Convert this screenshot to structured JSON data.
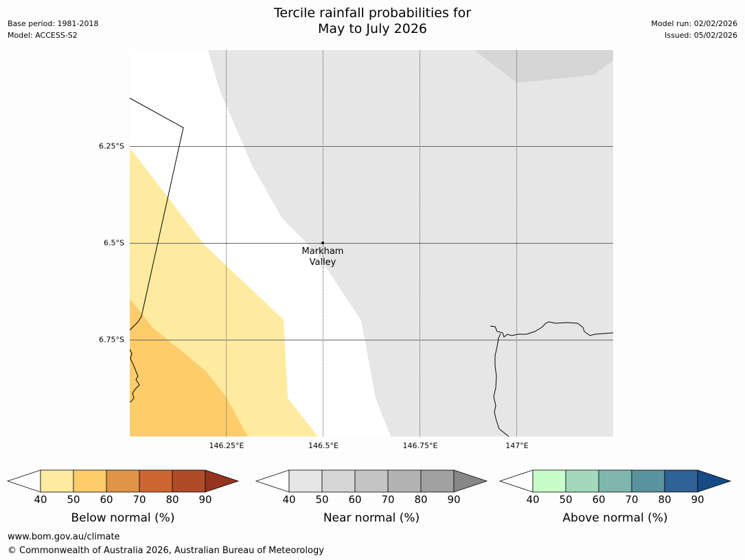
{
  "title": {
    "line1": "Tercile rainfall probabilities for",
    "line2": "May to July 2026"
  },
  "meta_left": {
    "base_period": "Base period: 1981-2018",
    "model": "Model: ACCESS-S2"
  },
  "meta_right": {
    "model_run": "Model run: 02/02/2026",
    "issued": "Issued: 05/02/2026"
  },
  "map": {
    "lat_labels": [
      "6.25°S",
      "6.5°S",
      "6.75°S"
    ],
    "lon_labels": [
      "146.25°E",
      "146.5°E",
      "146.75°E",
      "147°E"
    ],
    "place": {
      "line1": "Markham",
      "line2": "Valley"
    },
    "colors": {
      "below_40": "#ffeba0",
      "below_50": "#fecc6a",
      "near_40": "#e6e6e6",
      "near_50": "#d6d6d6"
    }
  },
  "colorbars": [
    {
      "title": "Below normal (%)",
      "ticks": [
        "40",
        "50",
        "60",
        "70",
        "80",
        "90"
      ],
      "colors": [
        "#ffeba0",
        "#fecc6a",
        "#e09447",
        "#cd6633",
        "#b04b28",
        "#95351f"
      ]
    },
    {
      "title": "Near normal (%)",
      "ticks": [
        "40",
        "50",
        "60",
        "70",
        "80",
        "90"
      ],
      "colors": [
        "#e6e6e6",
        "#d6d6d6",
        "#c4c4c4",
        "#b3b3b3",
        "#a1a1a1",
        "#878787"
      ]
    },
    {
      "title": "Above normal (%)",
      "ticks": [
        "40",
        "50",
        "60",
        "70",
        "80",
        "90"
      ],
      "colors": [
        "#c8fdca",
        "#a3d9bb",
        "#7fb6ae",
        "#5a929d",
        "#2f6296",
        "#164b85"
      ]
    }
  ],
  "footer": {
    "url": "www.bom.gov.au/climate",
    "copyright": "© Commonwealth of Australia 2026, Australian Bureau of Meteorology"
  }
}
